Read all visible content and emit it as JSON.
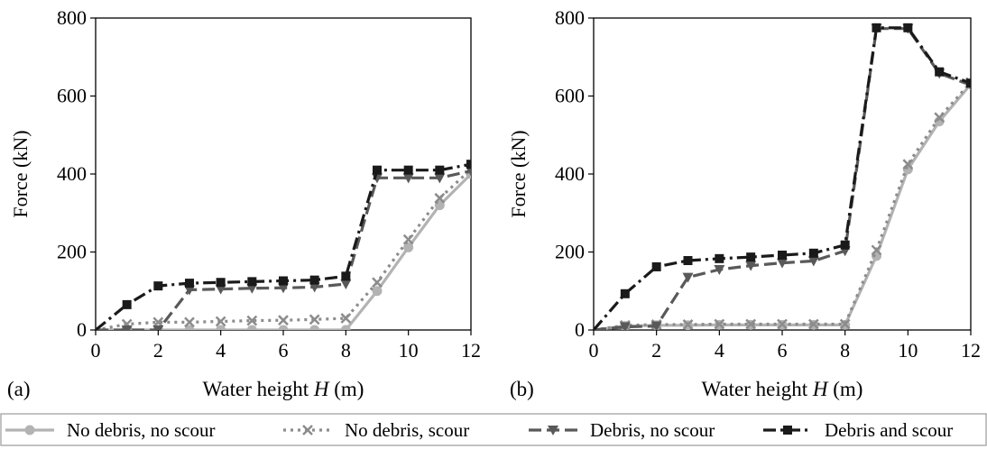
{
  "series_styles": [
    {
      "name": "No debris, no scour",
      "color": "#b3b3b3",
      "dash": "",
      "marker": "circle"
    },
    {
      "name": "No debris, scour",
      "color": "#8c8c8c",
      "dash": "dot",
      "marker": "x"
    },
    {
      "name": "Debris, no scour",
      "color": "#595959",
      "dash": "dash",
      "marker": "triangle-down"
    },
    {
      "name": "Debris and scour",
      "color": "#1a1a1a",
      "dash": "dashdot",
      "marker": "square"
    }
  ],
  "chart_data": [
    {
      "type": "line",
      "panel_label": "(a)",
      "title": "",
      "xlabel": "Water height",
      "xlabel_var": "H",
      "xlabel_unit": "(m)",
      "ylabel": "Force (kN)",
      "xlim": [
        0,
        12
      ],
      "ylim": [
        0,
        800
      ],
      "xticks": [
        0,
        2,
        4,
        6,
        8,
        10,
        12
      ],
      "yticks": [
        0,
        200,
        400,
        600,
        800
      ],
      "grid": false,
      "x": [
        0,
        1,
        2,
        3,
        4,
        5,
        6,
        7,
        8,
        9,
        10,
        11,
        12
      ],
      "series": [
        {
          "name": "No debris, no scour",
          "values": [
            0,
            0,
            0,
            0,
            0,
            0,
            0,
            0,
            0,
            100,
            212,
            320,
            400
          ]
        },
        {
          "name": "No debris, scour",
          "values": [
            0,
            15,
            20,
            20,
            22,
            24,
            25,
            27,
            30,
            122,
            232,
            338,
            412
          ]
        },
        {
          "name": "Debris, no scour",
          "values": [
            0,
            0,
            0,
            103,
            105,
            107,
            108,
            110,
            118,
            390,
            390,
            390,
            408
          ]
        },
        {
          "name": "Debris and scour",
          "values": [
            0,
            65,
            113,
            120,
            122,
            124,
            126,
            128,
            138,
            410,
            410,
            410,
            425
          ]
        }
      ]
    },
    {
      "type": "line",
      "panel_label": "(b)",
      "title": "",
      "xlabel": "Water height",
      "xlabel_var": "H",
      "xlabel_unit": "(m)",
      "ylabel": "Force (kN)",
      "xlim": [
        0,
        12
      ],
      "ylim": [
        0,
        800
      ],
      "xticks": [
        0,
        2,
        4,
        6,
        8,
        10,
        12
      ],
      "yticks": [
        0,
        200,
        400,
        600,
        800
      ],
      "grid": false,
      "x": [
        0,
        1,
        2,
        3,
        4,
        5,
        6,
        7,
        8,
        9,
        10,
        11,
        12
      ],
      "series": [
        {
          "name": "No debris, no scour",
          "values": [
            0,
            10,
            12,
            12,
            13,
            13,
            13,
            13,
            13,
            190,
            412,
            535,
            630
          ]
        },
        {
          "name": "No debris, scour",
          "values": [
            0,
            12,
            14,
            14,
            15,
            15,
            15,
            15,
            15,
            205,
            425,
            545,
            635
          ]
        },
        {
          "name": "Debris, no scour",
          "values": [
            0,
            8,
            10,
            135,
            155,
            165,
            172,
            177,
            203,
            773,
            773,
            658,
            628
          ]
        },
        {
          "name": "Debris and scour",
          "values": [
            0,
            93,
            162,
            178,
            183,
            187,
            192,
            197,
            218,
            775,
            775,
            662,
            633
          ]
        }
      ]
    }
  ]
}
